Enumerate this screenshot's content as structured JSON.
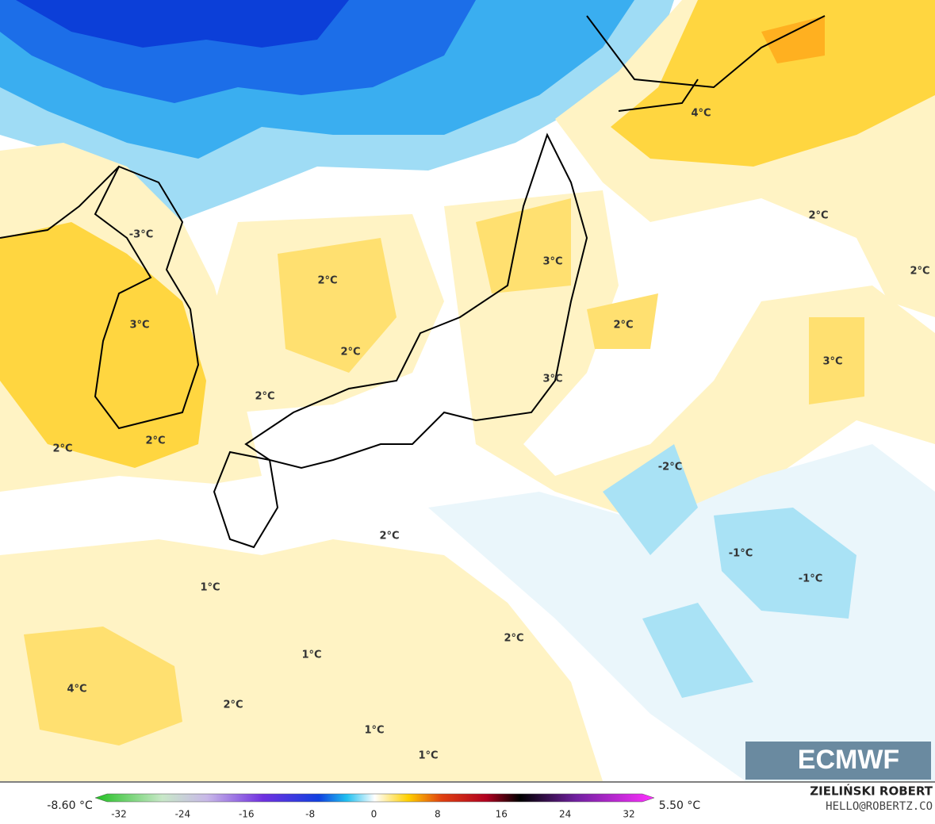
{
  "map": {
    "labels": [
      "-3°C",
      "3°C",
      "2°C",
      "3°C",
      "2°C",
      "2°C",
      "3°C",
      "2°C",
      "2°C",
      "2°C",
      "2°C",
      "2°C",
      "3°C",
      "4°C",
      "-2°C",
      "-1°C",
      "-1°C",
      "2°C",
      "1°C",
      "2°C",
      "1°C",
      "4°C",
      "2°C",
      "1°C",
      "1°C"
    ],
    "logo": "ECMWF"
  },
  "colorbar": {
    "min_label": "-8.60 °C",
    "max_label": "5.50 °C",
    "ticks": [
      -32,
      -24,
      -16,
      -8,
      0,
      8,
      16,
      24,
      32
    ]
  },
  "credit": {
    "author": "ZIELIŃSKI ROBERT",
    "contact": "HELLO@ROBERTZ.CO"
  }
}
